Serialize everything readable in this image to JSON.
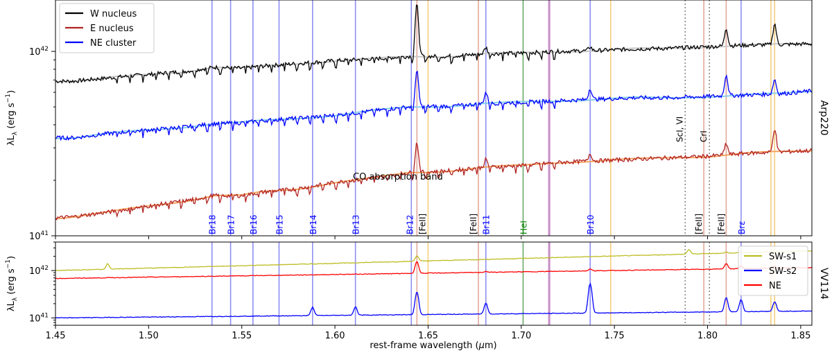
{
  "chart_data": [
    {
      "panel": "top",
      "type": "line",
      "title": "",
      "side_label": "Arp220",
      "ylabel": "λL_λ (erg s⁻¹)",
      "ylabel_parts": [
        "λL",
        "λ",
        " (erg s",
        "−1",
        ")"
      ],
      "xlim": [
        1.45,
        1.856
      ],
      "ylim": [
        1e+41,
        1.9e+42
      ],
      "yscale": "log",
      "yticks": [
        {
          "value": 1e+41,
          "base": "10",
          "exp": "41"
        },
        {
          "value": 1e+42,
          "base": "10",
          "exp": "42"
        }
      ],
      "grid": false,
      "legend_position": "top-left",
      "legend": [
        {
          "name": "W nucleus",
          "color": "#000000"
        },
        {
          "name": "E nucleus",
          "color": "#b22222"
        },
        {
          "name": "NE cluster",
          "color": "#0000ff"
        }
      ],
      "series": [
        {
          "name": "W nucleus",
          "color": "#000000",
          "fit_color": "#c8c8c8",
          "x": [
            1.45,
            1.46,
            1.48,
            1.5,
            1.52,
            1.535,
            1.55,
            1.56,
            1.58,
            1.6,
            1.62,
            1.64,
            1.66,
            1.68,
            1.7,
            1.72,
            1.74,
            1.76,
            1.78,
            1.8,
            1.82,
            1.84,
            1.856
          ],
          "y": [
            6.9e+41,
            6.9e+41,
            7.2e+41,
            7.5e+41,
            7.8e+41,
            8.2e+41,
            8.1e+41,
            8.3e+41,
            8.6e+41,
            8.9e+41,
            9.1e+41,
            9.4e+41,
            9.4e+41,
            9.7e+41,
            9.8e+41,
            1e+42,
            1.01e+42,
            1.03e+42,
            1.04e+42,
            1.06e+42,
            1.08e+42,
            1.09e+42,
            1.1e+42
          ]
        },
        {
          "name": "NE cluster",
          "color": "#0000ff",
          "fit_color": "#87ceeb",
          "x": [
            1.45,
            1.46,
            1.48,
            1.5,
            1.52,
            1.535,
            1.55,
            1.56,
            1.58,
            1.6,
            1.62,
            1.64,
            1.66,
            1.68,
            1.7,
            1.72,
            1.74,
            1.76,
            1.78,
            1.8,
            1.82,
            1.84,
            1.856
          ],
          "y": [
            3.4e+41,
            3.4e+41,
            3.6e+41,
            3.75e+41,
            3.9e+41,
            4.05e+41,
            4.1e+41,
            4.2e+41,
            4.35e+41,
            4.5e+41,
            4.75e+41,
            5e+41,
            5.05e+41,
            5.2e+41,
            5.3e+41,
            5.4e+41,
            5.5e+41,
            5.6e+41,
            5.6e+41,
            5.7e+41,
            5.8e+41,
            5.9e+41,
            6.1e+41
          ]
        },
        {
          "name": "E nucleus",
          "color": "#b22222",
          "fit_color": "#f4a460",
          "x": [
            1.45,
            1.46,
            1.48,
            1.5,
            1.52,
            1.535,
            1.55,
            1.56,
            1.58,
            1.6,
            1.62,
            1.64,
            1.66,
            1.68,
            1.7,
            1.72,
            1.74,
            1.76,
            1.78,
            1.8,
            1.82,
            1.84,
            1.856
          ],
          "y": [
            1.25e+41,
            1.27e+41,
            1.35e+41,
            1.45e+41,
            1.55e+41,
            1.65e+41,
            1.65e+41,
            1.72e+41,
            1.8e+41,
            1.95e+41,
            2.05e+41,
            2.2e+41,
            2.25e+41,
            2.35e+41,
            2.4e+41,
            2.5e+41,
            2.55e+41,
            2.6e+41,
            2.65e+41,
            2.7e+41,
            2.8e+41,
            2.85e+41,
            2.9e+41
          ]
        }
      ],
      "emission_peaks": [
        {
          "wavelength": 1.644,
          "heights": {
            "W nucleus": 1.9,
            "NE cluster": 1.55,
            "E nucleus": 1.45
          }
        },
        {
          "wavelength": 1.81,
          "heights": {
            "W nucleus": 1.25,
            "NE cluster": 1.3,
            "E nucleus": 1.15
          }
        },
        {
          "wavelength": 1.836,
          "heights": {
            "W nucleus": 1.3,
            "NE cluster": 1.2,
            "E nucleus": 1.35
          }
        },
        {
          "wavelength": 1.737,
          "heights": {
            "W nucleus": 1.05,
            "NE cluster": 1.15,
            "E nucleus": 1.1
          }
        },
        {
          "wavelength": 1.681,
          "heights": {
            "W nucleus": 1.08,
            "NE cluster": 1.15,
            "E nucleus": 1.1
          }
        }
      ],
      "lines": [
        {
          "wavelength": 1.534,
          "label": "Br18",
          "type": "Br"
        },
        {
          "wavelength": 1.544,
          "label": "Br17",
          "type": "Br"
        },
        {
          "wavelength": 1.556,
          "label": "Br16",
          "type": "Br"
        },
        {
          "wavelength": 1.57,
          "label": "Br15",
          "type": "Br"
        },
        {
          "wavelength": 1.588,
          "label": "Br14",
          "type": "Br"
        },
        {
          "wavelength": 1.611,
          "label": "Br13",
          "type": "Br"
        },
        {
          "wavelength": 1.641,
          "label": "Br12",
          "type": "Br"
        },
        {
          "wavelength": 1.681,
          "label": "Br11",
          "type": "Br"
        },
        {
          "wavelength": 1.737,
          "label": "Br10",
          "type": "Br"
        },
        {
          "wavelength": 1.818,
          "label": "Brε",
          "type": "Br"
        },
        {
          "wavelength": 1.644,
          "label": "[FeII]",
          "type": "FeII"
        },
        {
          "wavelength": 1.677,
          "label": "[FeII]",
          "type": "FeII"
        },
        {
          "wavelength": 1.798,
          "label": "[FeII]",
          "type": "FeII"
        },
        {
          "wavelength": 1.81,
          "label": "[FeII]",
          "type": "FeII"
        },
        {
          "wavelength": 1.701,
          "label": "HeI",
          "type": "HeI"
        },
        {
          "wavelength": 1.715,
          "label": "",
          "type": "purple"
        },
        {
          "wavelength": 1.65,
          "label": "",
          "type": "orange"
        },
        {
          "wavelength": 1.748,
          "label": "",
          "type": "orange"
        },
        {
          "wavelength": 1.834,
          "label": "",
          "type": "orange"
        },
        {
          "wavelength": 1.836,
          "label": "",
          "type": "orange"
        },
        {
          "wavelength": 1.788,
          "label": "ScI, VI",
          "type": "dotted"
        },
        {
          "wavelength": 1.801,
          "label": "CrI",
          "type": "dotted"
        }
      ],
      "annotations": [
        {
          "text": "CO absorption band",
          "x": 1.546,
          "y": 2.55e+41
        }
      ]
    },
    {
      "panel": "bottom",
      "type": "line",
      "side_label": "VV114",
      "ylabel": "λL_λ (erg s⁻¹)",
      "ylabel_parts": [
        "λL",
        "λ",
        " (erg s",
        "−1",
        ")"
      ],
      "xlabel": "rest-frame wavelength (μm)",
      "xlabel_parts": [
        "rest-frame wavelength (",
        "μ",
        "m)"
      ],
      "xlim": [
        1.45,
        1.856
      ],
      "ylim": [
        7e+40,
        4e+42
      ],
      "yscale": "log",
      "xticks": [
        "1.45",
        "1.50",
        "1.55",
        "1.60",
        "1.65",
        "1.70",
        "1.75",
        "1.80",
        "1.85"
      ],
      "yticks": [
        {
          "value": 1e+41,
          "base": "10",
          "exp": "41"
        },
        {
          "value": 1e+42,
          "base": "10",
          "exp": "42"
        }
      ],
      "legend_position": "top-right",
      "legend": [
        {
          "name": "SW-s1",
          "color": "#bcbd22"
        },
        {
          "name": "SW-s2",
          "color": "#0000ff"
        },
        {
          "name": "NE",
          "color": "#ff0000"
        }
      ],
      "series": [
        {
          "name": "SW-s1",
          "color": "#bcbd22",
          "start": 1e+42,
          "end": 2.6e+42
        },
        {
          "name": "NE",
          "color": "#ff0000",
          "start": 6.8e+41,
          "end": 1.15e+42
        },
        {
          "name": "SW-s2",
          "color": "#0000ff",
          "start": 1e+41,
          "end": 1.4e+41
        }
      ],
      "emission_peaks": [
        {
          "wavelength": 1.644,
          "heights": {
            "SW-s1": 1.3,
            "NE": 1.8,
            "SW-s2": 3.0
          }
        },
        {
          "wavelength": 1.737,
          "heights": {
            "SW-s1": 1.0,
            "NE": 1.1,
            "SW-s2": 4.2
          }
        },
        {
          "wavelength": 1.81,
          "heights": {
            "SW-s1": 1.05,
            "NE": 1.3,
            "SW-s2": 2.0
          }
        },
        {
          "wavelength": 1.818,
          "heights": {
            "SW-s1": 1.0,
            "NE": 1.15,
            "SW-s2": 1.8
          }
        },
        {
          "wavelength": 1.836,
          "heights": {
            "SW-s1": 1.05,
            "NE": 1.1,
            "SW-s2": 1.6
          }
        },
        {
          "wavelength": 1.681,
          "heights": {
            "SW-s1": 1.0,
            "NE": 1.05,
            "SW-s2": 1.7
          }
        },
        {
          "wavelength": 1.611,
          "heights": {
            "SW-s1": 1.0,
            "NE": 1.0,
            "SW-s2": 1.5
          }
        },
        {
          "wavelength": 1.588,
          "heights": {
            "SW-s1": 1.0,
            "NE": 1.0,
            "SW-s2": 1.5
          }
        },
        {
          "wavelength": 1.79,
          "heights": {
            "SW-s1": 1.25,
            "NE": 1.0,
            "SW-s2": 1.0
          }
        },
        {
          "wavelength": 1.478,
          "heights": {
            "SW-s1": 1.3,
            "NE": 1.0,
            "SW-s2": 1.0
          }
        }
      ]
    }
  ],
  "colors": {
    "Br": "#7b7bf0",
    "FeII": "#e0a090",
    "HeI": "#5aa05a",
    "orange": "#f5c870",
    "purple": "#c080c0",
    "dotted": "#888888",
    "label_blue": "#0000ff",
    "label_green": "#008000",
    "label_black": "#000000"
  }
}
